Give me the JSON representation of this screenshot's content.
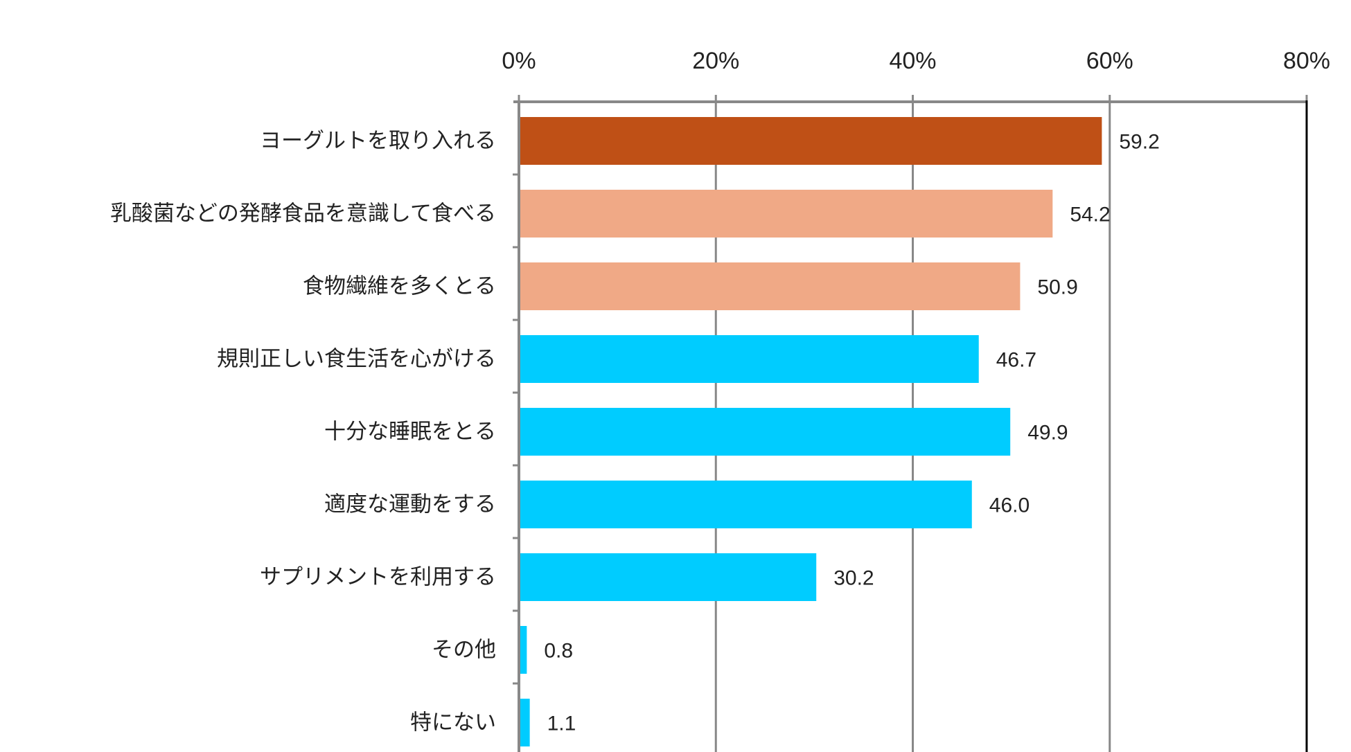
{
  "chart_data": {
    "type": "bar",
    "orientation": "horizontal",
    "title": "",
    "xlabel": "",
    "ylabel": "",
    "xlim": [
      0,
      80
    ],
    "xticks": [
      "0%",
      "20%",
      "40%",
      "60%",
      "80%"
    ],
    "xtick_values": [
      0,
      20,
      40,
      60,
      80
    ],
    "grid": true,
    "categories": [
      "ヨーグルトを取り入れる",
      "乳酸菌などの発酵食品を意識して食べる",
      "食物繊維を多くとる",
      "規則正しい食生活を心がける",
      "十分な睡眠をとる",
      "適度な運動をする",
      "サプリメントを利用する",
      "その他",
      "特にない"
    ],
    "values": [
      59.2,
      54.2,
      50.9,
      46.7,
      49.9,
      46.0,
      30.2,
      0.8,
      1.1
    ],
    "value_labels": [
      "59.2",
      "54.2",
      "50.9",
      "46.7",
      "49.9",
      "46.0",
      "30.2",
      "0.8",
      "1.1"
    ],
    "bar_colors": [
      "#BF5016",
      "#F0A986",
      "#F0A986",
      "#00CCFF",
      "#00CCFF",
      "#00CCFF",
      "#00CCFF",
      "#00CCFF",
      "#00CCFF"
    ]
  }
}
